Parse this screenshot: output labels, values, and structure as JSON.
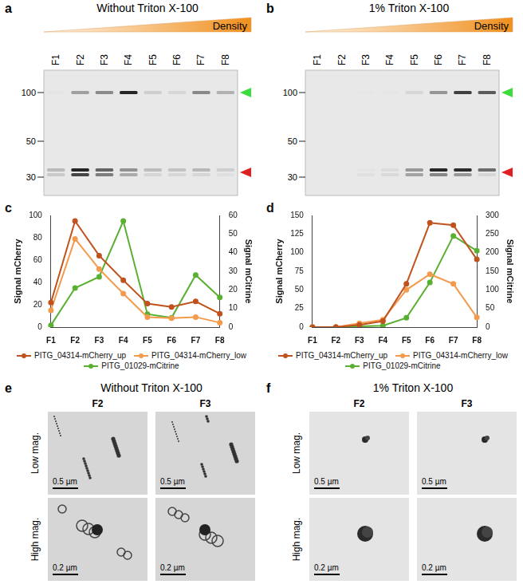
{
  "panels": {
    "a": {
      "letter": "a",
      "title": "Without Triton X-100",
      "gradient_label": "Density",
      "lanes": [
        "F1",
        "F2",
        "F3",
        "F4",
        "F5",
        "F6",
        "F7",
        "F8"
      ],
      "marker_ticks": [
        100,
        50,
        30
      ]
    },
    "b": {
      "letter": "b",
      "title": "1% Triton X-100",
      "gradient_label": "Density",
      "lanes": [
        "F1",
        "F2",
        "F3",
        "F4",
        "F5",
        "F6",
        "F7",
        "F8"
      ],
      "marker_ticks": [
        100,
        50,
        30
      ]
    },
    "e": {
      "letter": "e",
      "title": "Without Triton X-100",
      "columns": [
        "F2",
        "F3"
      ],
      "rows": [
        "Low mag.",
        "High mag."
      ],
      "scale_bars": [
        "0.5 µm",
        "0.2 µm"
      ]
    },
    "f": {
      "letter": "f",
      "title": "1% Triton X-100",
      "columns": [
        "F2",
        "F3"
      ],
      "rows": [
        "Low mag.",
        "High mag."
      ],
      "scale_bars": [
        "0.5 µm",
        "0.2 µm"
      ]
    }
  },
  "chart_data": [
    {
      "letter": "c",
      "type": "line",
      "y_label": "Signal mCherry",
      "y2_label": "Signal mCitrine",
      "categories": [
        "F1",
        "F2",
        "F3",
        "F4",
        "F5",
        "F6",
        "F7",
        "F8"
      ],
      "ylim": [
        0,
        100
      ],
      "yticks": [
        0,
        20,
        40,
        60,
        80,
        100
      ],
      "y2lim": [
        0,
        60
      ],
      "y2ticks": [
        0,
        10,
        20,
        30,
        40,
        50,
        60
      ],
      "grid": false,
      "legend": "bottom",
      "marker": "circle",
      "series": [
        {
          "name": "PITG_04314-mCherry_up",
          "color": "#c0521d",
          "values": [
            22,
            95,
            64,
            42,
            21,
            18,
            23,
            12
          ]
        },
        {
          "name": "PITG_04314-mCherry_low",
          "color": "#f39a4c",
          "values": [
            15,
            79,
            52,
            30,
            9,
            8,
            9,
            4
          ]
        },
        {
          "name": "PITG_01029-mCitrine",
          "color": "#5ab031",
          "axis": "y2",
          "values": [
            1,
            21,
            27,
            57,
            7,
            5,
            28,
            16
          ]
        }
      ]
    },
    {
      "letter": "d",
      "type": "line",
      "y_label": "Signal mCherry",
      "y2_label": "Signal mCitrine",
      "categories": [
        "F1",
        "F2",
        "F3",
        "F4",
        "F5",
        "F6",
        "F7",
        "F8"
      ],
      "ylim": [
        0,
        150
      ],
      "yticks": [
        0,
        25,
        50,
        75,
        100,
        125,
        150
      ],
      "y2lim": [
        0,
        300
      ],
      "y2ticks": [
        0,
        50,
        100,
        150,
        200,
        250,
        300
      ],
      "grid": false,
      "legend": "bottom",
      "marker": "circle",
      "series": [
        {
          "name": "PITG_04314-mCherry_up",
          "color": "#c0521d",
          "values": [
            0,
            0,
            3,
            8,
            58,
            140,
            137,
            91
          ]
        },
        {
          "name": "PITG_04314-mCherry_low",
          "color": "#f39a4c",
          "values": [
            0,
            0,
            5,
            10,
            50,
            71,
            58,
            13
          ]
        },
        {
          "name": "PITG_01029-mCitrine",
          "color": "#5ab031",
          "axis": "y2",
          "values": [
            0,
            0,
            2,
            4,
            25,
            120,
            245,
            205
          ]
        }
      ]
    }
  ]
}
